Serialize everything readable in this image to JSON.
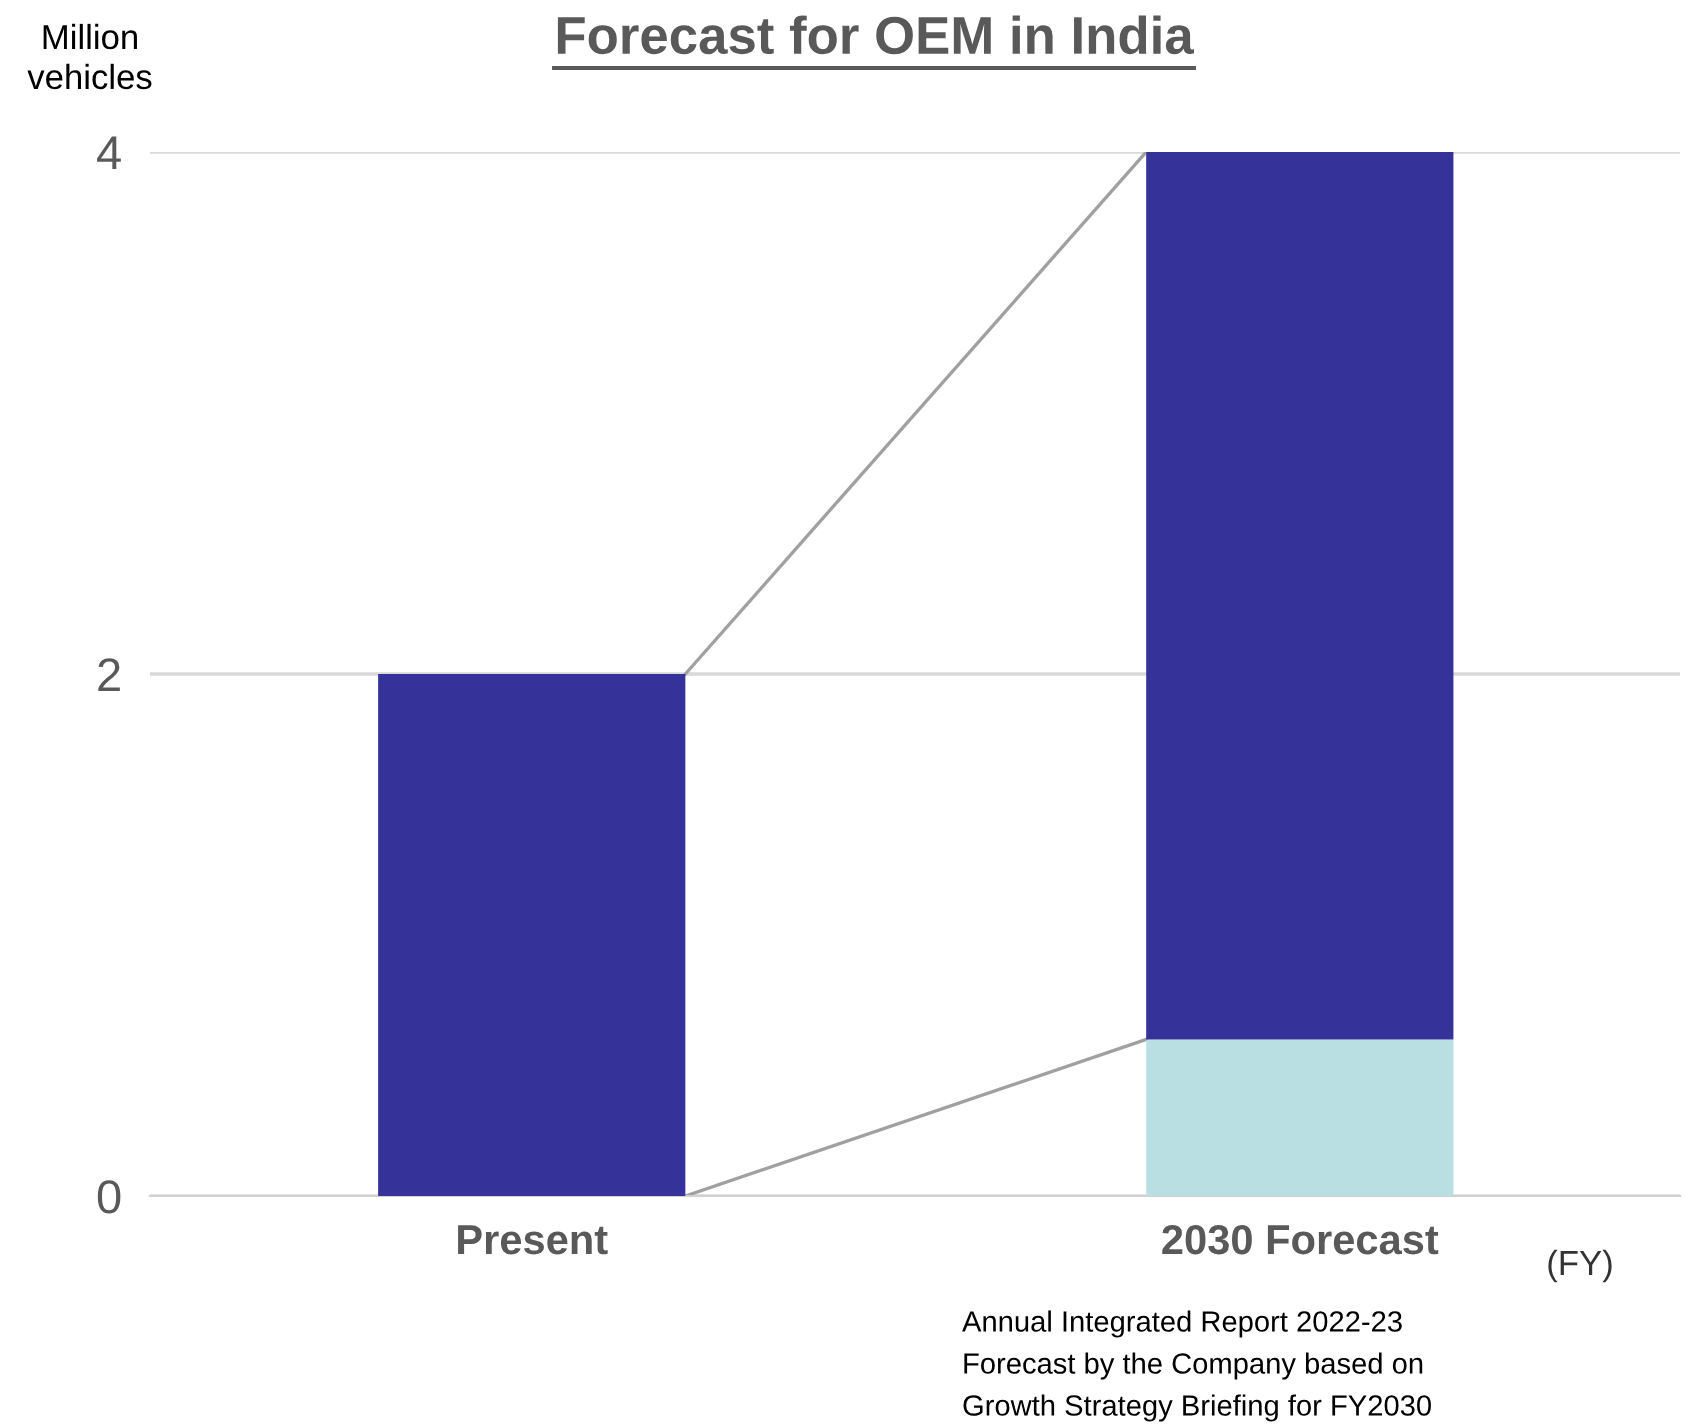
{
  "chart_data": {
    "type": "bar",
    "title": "Forecast for OEM in India",
    "ylabel": "Million vehicles",
    "categories": [
      "Present",
      "2030 Forecast"
    ],
    "stacked": true,
    "series": [
      {
        "color": "#b9dfe3",
        "values": [
          null,
          0.6
        ]
      },
      {
        "color": "#35339a",
        "values": [
          2,
          3.4
        ]
      }
    ],
    "ylim": [
      0,
      4
    ],
    "yticks": [
      0,
      2,
      4
    ],
    "grid": "y",
    "legend": false,
    "annotations": [
      "(FY)",
      "Annual Integrated Report 2022-23",
      "Forecast by the Company based on",
      "Growth Strategy Briefing for FY2030"
    ]
  }
}
